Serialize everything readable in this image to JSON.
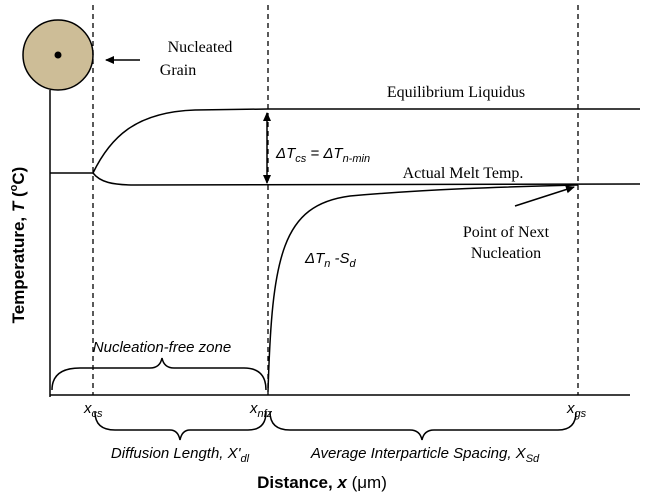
{
  "grain_label": [
    "Nucleated",
    "Grain"
  ],
  "liquidus": "Equilibrium Liquidus",
  "melt": "Actual Melt Temp.",
  "next_nucleation": [
    "Point of Next",
    "Nucleation"
  ],
  "delta_tcs": [
    "ΔT",
    "cs",
    " = ΔT",
    "n-min"
  ],
  "delta_tn": [
    "ΔT",
    "n",
    " -S",
    "d"
  ],
  "zone": "Nucleation-free zone",
  "x_marks": [
    [
      "x",
      "cs"
    ],
    [
      "x",
      "nfz"
    ],
    [
      "x",
      "gs"
    ]
  ],
  "spans": {
    "diffusion": [
      "Diffusion Length, X'",
      "dl"
    ],
    "spacing": [
      "Average Interparticle Spacing, X",
      "Sd"
    ]
  },
  "axes": {
    "x_title": [
      "Distance, ",
      "x",
      " (μm)"
    ],
    "y_title": [
      "Temperature, ",
      "T",
      " (",
      "o",
      "C)"
    ]
  }
}
